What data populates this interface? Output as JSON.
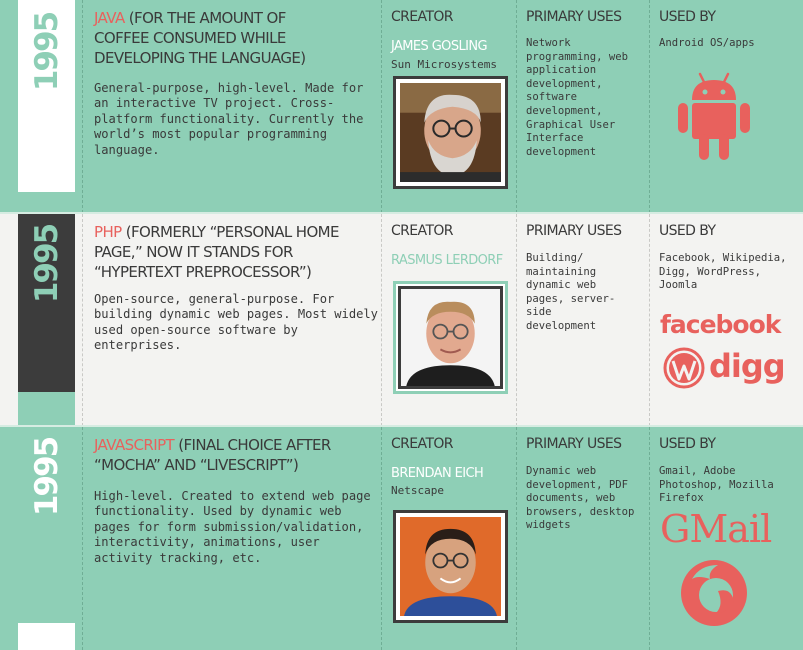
{
  "colors": {
    "teal": "#8ecfb6",
    "light": "#f3f3f1",
    "dark": "#3c3c3c",
    "accent": "#e8615d",
    "text": "#3a3a3a"
  },
  "languages": [
    {
      "year": "1995",
      "name": "Java",
      "note": " (for the amount of coffee consumed while developing the language)",
      "description": "General-purpose, high-level. Made for an interactive TV project. Cross-platform functionality. Currently the world’s most popular programming language.",
      "creator_label": "Creator",
      "creator_name": "James Gosling",
      "creator_org": "Sun Microsystems",
      "uses_label": "Primary Uses",
      "uses": "Network programming, web application development, software development, Graphical User Interface development",
      "used_by_label": "Used By",
      "used_by": "Android OS/apps",
      "logos": [
        "android-logo-icon"
      ]
    },
    {
      "year": "1995",
      "name": "PHP",
      "note": " (formerly “Personal Home Page,” now it stands for “Hypertext Preprocessor”)",
      "description": "Open-source, general-purpose. For building dynamic web pages. Most widely used open-source software by enterprises.",
      "creator_label": "Creator",
      "creator_name": "Rasmus Lerdorf",
      "creator_org": "",
      "uses_label": "Primary Uses",
      "uses": "Building/ maintaining dynamic web pages, server-side development",
      "used_by_label": "Used By",
      "used_by": "Facebook, Wikipedia, Digg, WordPress, Joomla",
      "logos": [
        "facebook-logo",
        "wordpress-logo-icon",
        "digg-logo"
      ],
      "logo_text": {
        "facebook": "facebook",
        "digg": "digg"
      }
    },
    {
      "year": "1995",
      "name": "JavaScript",
      "note": " (final choice after “Mocha” and “LiveScript”)",
      "description": "High-level. Created to extend web page functionality. Used by dynamic web pages for form submission/validation, interactivity, animations, user activity tracking, etc.",
      "creator_label": "Creator",
      "creator_name": "Brendan Eich",
      "creator_org": "Netscape",
      "uses_label": "Primary Uses",
      "uses": "Dynamic web development, PDF documents, web browsers, desktop widgets",
      "used_by_label": "Used By",
      "used_by": "Gmail, Adobe Photoshop, Mozilla Firefox",
      "logos": [
        "gmail-logo",
        "firefox-logo-icon"
      ],
      "logo_text": {
        "gmail": "GMail"
      }
    }
  ]
}
